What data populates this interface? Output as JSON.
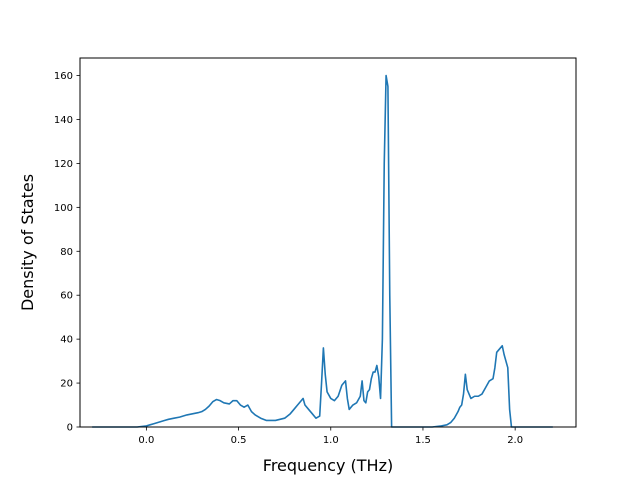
{
  "chart_data": {
    "type": "line",
    "title": "",
    "xlabel": "Frequency (THz)",
    "ylabel": "Density of States",
    "xlim": [
      -0.36,
      2.33
    ],
    "ylim": [
      0,
      168
    ],
    "xticks": [
      0.0,
      0.5,
      1.0,
      1.5,
      2.0
    ],
    "xtick_labels": [
      "0.0",
      "0.5",
      "1.0",
      "1.5",
      "2.0"
    ],
    "yticks": [
      0,
      20,
      40,
      60,
      80,
      100,
      120,
      140,
      160
    ],
    "ytick_labels": [
      "0",
      "20",
      "40",
      "60",
      "80",
      "100",
      "120",
      "140",
      "160"
    ],
    "grid": false,
    "line_color": "#1f77b4",
    "series": [
      {
        "x": [
          -0.29,
          -0.2,
          -0.1,
          -0.05,
          0.0,
          0.02,
          0.04,
          0.06,
          0.08,
          0.1,
          0.12,
          0.15,
          0.18,
          0.2,
          0.22,
          0.25,
          0.28,
          0.3,
          0.32,
          0.34,
          0.36,
          0.38,
          0.4,
          0.42,
          0.45,
          0.47,
          0.49,
          0.51,
          0.53,
          0.55,
          0.57,
          0.59,
          0.62,
          0.65,
          0.7,
          0.75,
          0.78,
          0.8,
          0.82,
          0.84,
          0.85,
          0.86,
          0.88,
          0.9,
          0.92,
          0.94,
          0.95,
          0.96,
          0.97,
          0.98,
          1.0,
          1.02,
          1.04,
          1.06,
          1.08,
          1.09,
          1.1,
          1.12,
          1.14,
          1.16,
          1.17,
          1.18,
          1.19,
          1.2,
          1.21,
          1.22,
          1.23,
          1.24,
          1.25,
          1.26,
          1.27,
          1.28,
          1.29,
          1.3,
          1.31,
          1.32,
          1.33,
          1.34,
          1.35,
          1.36,
          1.4,
          1.45,
          1.5,
          1.55,
          1.6,
          1.63,
          1.65,
          1.67,
          1.69,
          1.7,
          1.71,
          1.72,
          1.73,
          1.74,
          1.76,
          1.78,
          1.8,
          1.82,
          1.84,
          1.86,
          1.88,
          1.89,
          1.9,
          1.92,
          1.93,
          1.94,
          1.96,
          1.97,
          1.98,
          2.0,
          2.05,
          2.1,
          2.2
        ],
        "y": [
          0,
          0,
          0,
          0,
          0.5,
          1,
          1.5,
          2,
          2.5,
          3,
          3.5,
          4,
          4.5,
          5,
          5.5,
          6,
          6.5,
          7,
          8,
          9.5,
          11.5,
          12.5,
          12,
          11,
          10.5,
          12,
          12,
          10,
          9,
          10,
          7,
          5.5,
          4,
          3,
          3,
          4,
          6,
          8,
          10,
          12,
          13,
          10,
          8,
          6,
          4,
          5,
          20,
          36,
          24,
          16,
          13,
          12,
          14,
          19,
          21,
          13,
          8,
          10,
          11,
          14,
          21,
          12,
          11,
          16,
          17,
          22,
          25,
          25,
          28,
          23,
          13,
          40,
          120,
          160,
          155,
          60,
          0,
          0,
          0,
          0,
          0,
          0,
          0,
          0,
          0.5,
          1,
          2,
          4,
          7,
          9,
          10,
          15,
          24,
          17,
          13,
          14,
          14,
          15,
          18,
          21,
          22,
          27,
          34,
          36,
          37,
          33,
          27,
          8,
          0,
          0,
          0,
          0,
          0
        ]
      }
    ]
  }
}
